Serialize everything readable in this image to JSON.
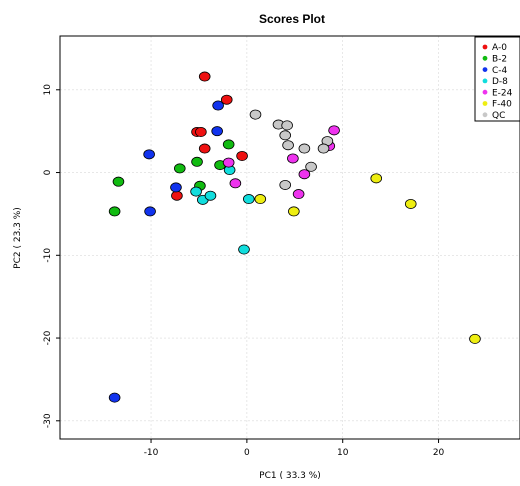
{
  "chart_data": {
    "type": "scatter",
    "title": "Scores Plot",
    "xlabel": "PC1 ( 33.3 %)",
    "ylabel": "PC2 ( 23.3 %)",
    "xlim": [
      -19.5,
      28.5
    ],
    "ylim": [
      -32.2,
      16.5
    ],
    "xticks": [
      -10,
      0,
      10,
      20
    ],
    "yticks": [
      -30,
      -20,
      -10,
      0,
      10
    ],
    "grid": true,
    "legend_position": "top-right",
    "series": [
      {
        "name": "A-0",
        "color": "#ee1111",
        "points": [
          [
            -4.4,
            11.6
          ],
          [
            -2.1,
            8.8
          ],
          [
            -5.2,
            4.9
          ],
          [
            -4.8,
            4.9
          ],
          [
            -4.4,
            2.9
          ],
          [
            -0.5,
            2.0
          ],
          [
            -7.3,
            -2.8
          ]
        ]
      },
      {
        "name": "B-2",
        "color": "#11bb11",
        "points": [
          [
            -13.4,
            -1.1
          ],
          [
            -13.8,
            -4.7
          ],
          [
            -7.0,
            0.5
          ],
          [
            -5.2,
            1.3
          ],
          [
            -2.8,
            0.9
          ],
          [
            -1.9,
            3.4
          ],
          [
            -4.9,
            -1.6
          ]
        ]
      },
      {
        "name": "C-4",
        "color": "#1133ee",
        "points": [
          [
            -3.0,
            8.1
          ],
          [
            -10.2,
            2.2
          ],
          [
            -3.1,
            5.0
          ],
          [
            -7.4,
            -1.8
          ],
          [
            -10.1,
            -4.7
          ],
          [
            -13.8,
            -27.2
          ]
        ]
      },
      {
        "name": "D-8",
        "color": "#11dddd",
        "points": [
          [
            -1.8,
            0.3
          ],
          [
            -5.3,
            -2.3
          ],
          [
            -4.6,
            -3.3
          ],
          [
            -3.8,
            -2.8
          ],
          [
            0.2,
            -3.2
          ],
          [
            -0.3,
            -9.3
          ]
        ]
      },
      {
        "name": "E-24",
        "color": "#ee33ee",
        "points": [
          [
            9.1,
            5.1
          ],
          [
            8.6,
            3.2
          ],
          [
            4.8,
            1.7
          ],
          [
            -1.9,
            1.2
          ],
          [
            6.0,
            -0.2
          ],
          [
            -1.2,
            -1.3
          ],
          [
            5.4,
            -2.6
          ]
        ]
      },
      {
        "name": "F-40",
        "color": "#eeee11",
        "points": [
          [
            13.5,
            -0.7
          ],
          [
            17.1,
            -3.8
          ],
          [
            1.4,
            -3.2
          ],
          [
            4.9,
            -4.7
          ],
          [
            23.8,
            -20.1
          ]
        ]
      },
      {
        "name": "QC",
        "color": "#c8c8c8",
        "points": [
          [
            0.9,
            7.0
          ],
          [
            3.3,
            5.8
          ],
          [
            4.2,
            5.7
          ],
          [
            4.0,
            4.5
          ],
          [
            4.3,
            3.3
          ],
          [
            6.0,
            2.9
          ],
          [
            8.4,
            3.8
          ],
          [
            8.0,
            2.9
          ],
          [
            6.7,
            0.7
          ],
          [
            4.0,
            -1.5
          ]
        ]
      }
    ]
  }
}
